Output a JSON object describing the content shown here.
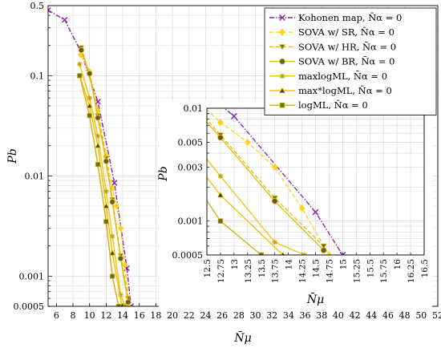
{
  "chart_data": [
    {
      "type": "line",
      "name": "main",
      "xlabel": "N̄μ",
      "ylabel": "Pb",
      "xscale": "linear",
      "yscale": "log",
      "xlim": [
        5,
        52
      ],
      "ylim": [
        0.0005,
        0.5
      ],
      "xticks": [
        6,
        8,
        10,
        12,
        14,
        16,
        18,
        20,
        22,
        24,
        26,
        28,
        30,
        32,
        34,
        36,
        38,
        40,
        42,
        44,
        46,
        48,
        50,
        52
      ],
      "yticks": [
        0.0005,
        0.001,
        0.01,
        0.1,
        0.5
      ],
      "ytick_labels": [
        "0.0005",
        "0.001",
        "0.01",
        "0.1",
        "0.5"
      ],
      "grid": true,
      "legend_position": "top-right",
      "series": [
        {
          "name": "Kohonen map, N̄α = 0",
          "color": "#8b1fa9",
          "style": "dashdot",
          "marker": "x",
          "x": [
            5,
            7,
            9,
            11,
            13,
            14.5,
            15.0
          ],
          "y": [
            0.45,
            0.36,
            0.17,
            0.055,
            0.0085,
            0.0012,
            0.0005
          ]
        },
        {
          "name": "SOVA w/ SR, N̄α = 0",
          "color": "#ffd11a",
          "style": "dashed",
          "marker": "diamond",
          "x": [
            9,
            10,
            11,
            12,
            12.75,
            13.25,
            13.75,
            14.25,
            14.75
          ],
          "y": [
            0.16,
            0.11,
            0.045,
            0.016,
            0.0075,
            0.005,
            0.003,
            0.0013,
            0.0005
          ]
        },
        {
          "name": "SOVA w/ HR, N̄α = 0",
          "color": "#e6b800",
          "style": "dashed",
          "marker": "triangle-down",
          "x": [
            9,
            10,
            11,
            12,
            12.75,
            13.75,
            14.65
          ],
          "y": [
            0.19,
            0.1,
            0.04,
            0.015,
            0.0058,
            0.0016,
            0.0006
          ]
        },
        {
          "name": "SOVA w/ BR, N̄α = 0",
          "color": "#e6b800",
          "style": "solid",
          "marker": "circle",
          "x": [
            9,
            10,
            11,
            12,
            12.75,
            13.75,
            14.65
          ],
          "y": [
            0.18,
            0.105,
            0.038,
            0.014,
            0.0055,
            0.0015,
            0.00055
          ]
        },
        {
          "name": "maxlogML, N̄α = 0",
          "color": "#f2c500",
          "style": "solid",
          "marker": "star",
          "x": [
            8.8,
            10,
            11,
            12,
            12.75,
            13.75,
            14.3
          ],
          "y": [
            0.13,
            0.06,
            0.025,
            0.007,
            0.0025,
            0.00065,
            0.0005
          ]
        },
        {
          "name": "max*logML, N̄α = 0",
          "color": "#ebbf00",
          "style": "solid",
          "marker": "triangle-up",
          "x": [
            8.8,
            10,
            11,
            12,
            12.75,
            13.9
          ],
          "y": [
            0.1,
            0.05,
            0.02,
            0.005,
            0.0017,
            0.0005
          ]
        },
        {
          "name": "logML, N̄α = 0",
          "color": "#d9ac00",
          "style": "solid",
          "marker": "square",
          "x": [
            8.8,
            10,
            11,
            12,
            12.75,
            13.5
          ],
          "y": [
            0.1,
            0.04,
            0.013,
            0.0035,
            0.001,
            0.0005
          ]
        }
      ]
    },
    {
      "type": "line",
      "name": "inset",
      "xlabel": "N̄μ",
      "ylabel": "Pb",
      "xscale": "linear",
      "yscale": "log",
      "xlim": [
        12.5,
        16.5
      ],
      "ylim": [
        0.0005,
        0.01
      ],
      "xticks": [
        12.5,
        12.75,
        13,
        13.25,
        13.5,
        13.75,
        14,
        14.25,
        14.5,
        14.75,
        15,
        15.25,
        15.5,
        15.75,
        16,
        16.25,
        16.5
      ],
      "xtick_labels": [
        "12.5",
        "12.75",
        "13",
        "13.25",
        "13.5",
        "13.75",
        "14",
        "14.25",
        "14.5",
        "14.75",
        "15",
        "15.25",
        "15.5",
        "15.75",
        "16",
        "16.25",
        "16.5"
      ],
      "yticks": [
        0.0005,
        0.001,
        0.003,
        0.005,
        0.01
      ],
      "ytick_labels": [
        "0.0005",
        "0.001",
        "0.003",
        "0.005",
        "0.01"
      ],
      "grid": true
    }
  ]
}
